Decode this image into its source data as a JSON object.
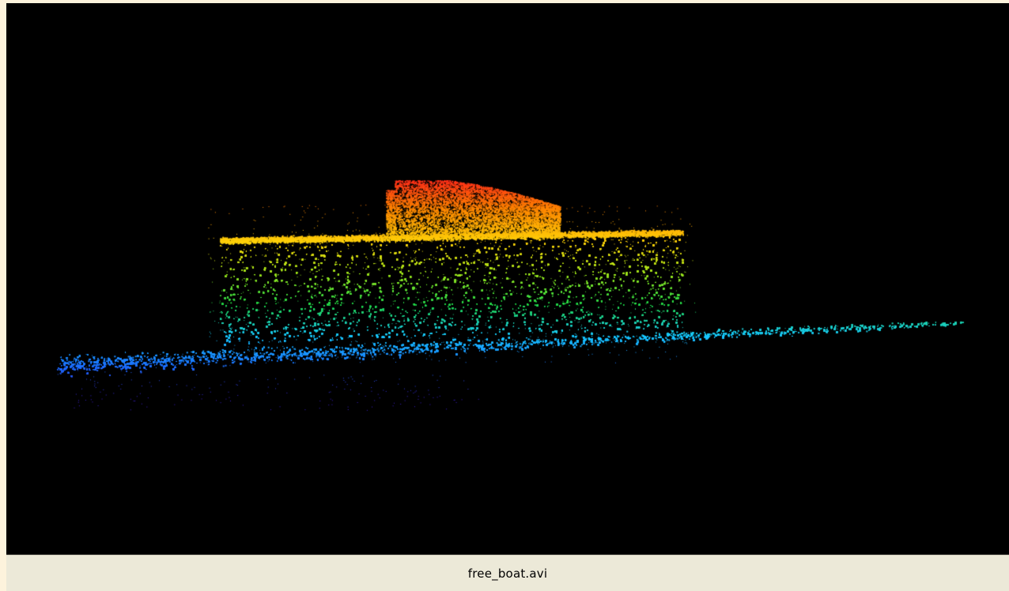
{
  "viewer": {
    "background_color": "#000000",
    "colormap": [
      "#3a1ec8",
      "#1e6cff",
      "#19c8ff",
      "#22d84a",
      "#9fe51c",
      "#ffd20a",
      "#ff8a00",
      "#ff2a1a"
    ],
    "scene": "point-cloud"
  },
  "status_bar": {
    "filename": "free_boat.avi"
  }
}
